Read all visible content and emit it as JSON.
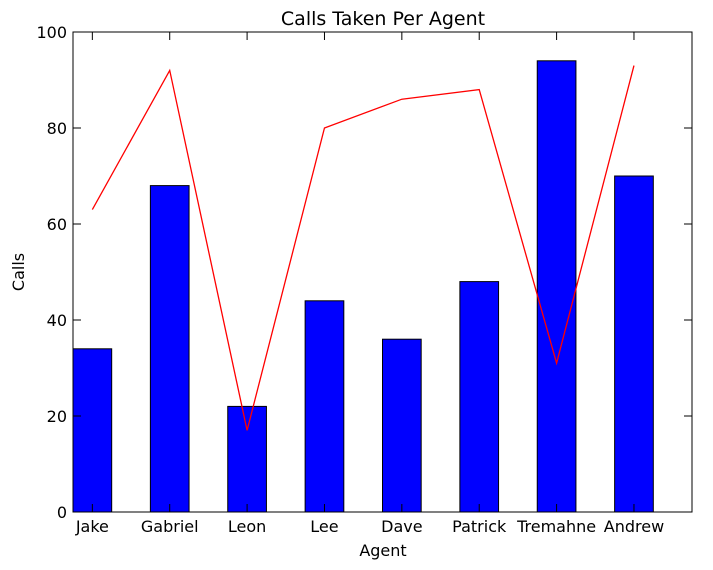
{
  "chart_data": {
    "type": "bar",
    "title": "Calls Taken Per Agent",
    "xlabel": "Agent",
    "ylabel": "Calls",
    "ylim": [
      0,
      100
    ],
    "yticks": [
      0,
      20,
      40,
      60,
      80,
      100
    ],
    "grid": false,
    "categories": [
      "Jake",
      "Gabriel",
      "Leon",
      "Lee",
      "Dave",
      "Patrick",
      "Tremahne",
      "Andrew"
    ],
    "series": [
      {
        "type": "bar",
        "values": [
          34,
          68,
          22,
          44,
          36,
          48,
          94,
          70
        ],
        "color": "#0000ff"
      },
      {
        "type": "line",
        "values": [
          63,
          92,
          17,
          80,
          86,
          88,
          31,
          93
        ],
        "color": "#ff0000"
      }
    ]
  }
}
